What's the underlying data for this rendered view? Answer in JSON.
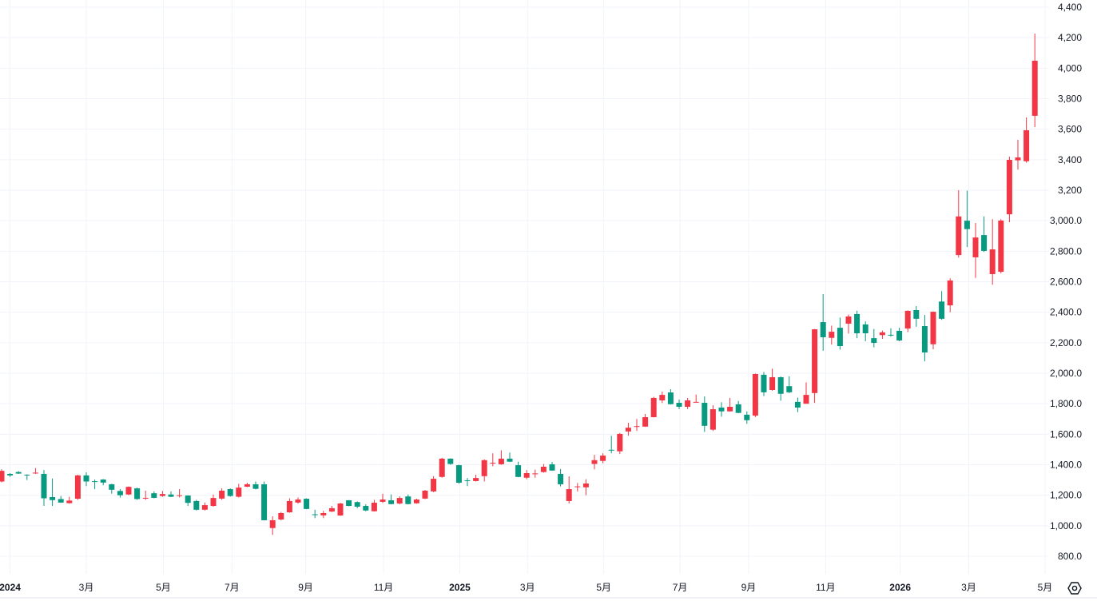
{
  "colors": {
    "up": "#f23645",
    "down": "#089981",
    "grid": "#f0f3fa",
    "text": "#131722"
  },
  "settings_icon": "gear-icon",
  "chart_data": {
    "type": "candlestick",
    "interval": "weekly",
    "ylim": [
      800,
      4400
    ],
    "y_ticks": [
      {
        "value": 4400,
        "label": "4,400"
      },
      {
        "value": 4200,
        "label": "4,200"
      },
      {
        "value": 4000,
        "label": "4,000"
      },
      {
        "value": 3800,
        "label": "3,800"
      },
      {
        "value": 3600,
        "label": "3,600"
      },
      {
        "value": 3400,
        "label": "3,400"
      },
      {
        "value": 3200,
        "label": "3,200"
      },
      {
        "value": 3000,
        "label": "3,000.0"
      },
      {
        "value": 2800,
        "label": "2,800.0"
      },
      {
        "value": 2600,
        "label": "2,600.0"
      },
      {
        "value": 2400,
        "label": "2,400.0"
      },
      {
        "value": 2200,
        "label": "2,200.0"
      },
      {
        "value": 2000,
        "label": "2,000.0"
      },
      {
        "value": 1800,
        "label": "1,800.0"
      },
      {
        "value": 1600,
        "label": "1,600.0"
      },
      {
        "value": 1400,
        "label": "1,400.0"
      },
      {
        "value": 1200,
        "label": "1,200.0"
      },
      {
        "value": 1000,
        "label": "1,000.0"
      },
      {
        "value": 800,
        "label": "800.0"
      }
    ],
    "x_ticks": [
      {
        "week": 1.0,
        "label": "2024",
        "year": true
      },
      {
        "week": 10.0,
        "label": "3月"
      },
      {
        "week": 19.1,
        "label": "5月"
      },
      {
        "week": 27.2,
        "label": "7月"
      },
      {
        "week": 35.9,
        "label": "9月"
      },
      {
        "week": 45.1,
        "label": "11月"
      },
      {
        "week": 54.1,
        "label": "2025",
        "year": true
      },
      {
        "week": 62.1,
        "label": "3月"
      },
      {
        "week": 71.1,
        "label": "5月"
      },
      {
        "week": 80.1,
        "label": "7月"
      },
      {
        "week": 88.2,
        "label": "9月"
      },
      {
        "week": 97.3,
        "label": "11月"
      },
      {
        "week": 106.1,
        "label": "2026",
        "year": true
      },
      {
        "week": 114.2,
        "label": "3月"
      },
      {
        "week": 123.2,
        "label": "5月"
      }
    ],
    "candles_ohlc": [
      [
        1290,
        1370,
        1285,
        1360
      ],
      [
        1340,
        1345,
        1320,
        1330
      ],
      [
        1352,
        1358,
        1340,
        1342
      ],
      [
        1335,
        1337,
        1300,
        1333
      ],
      [
        1345,
        1378,
        1340,
        1348
      ],
      [
        1340,
        1365,
        1130,
        1180
      ],
      [
        1188,
        1310,
        1130,
        1168
      ],
      [
        1175,
        1195,
        1150,
        1152
      ],
      [
        1148,
        1190,
        1145,
        1165
      ],
      [
        1177,
        1335,
        1170,
        1330
      ],
      [
        1330,
        1350,
        1260,
        1290
      ],
      [
        1292,
        1303,
        1240,
        1290
      ],
      [
        1303,
        1306,
        1265,
        1283
      ],
      [
        1272,
        1275,
        1210,
        1236
      ],
      [
        1228,
        1240,
        1185,
        1200
      ],
      [
        1205,
        1258,
        1200,
        1255
      ],
      [
        1245,
        1250,
        1170,
        1175
      ],
      [
        1180,
        1230,
        1170,
        1183
      ],
      [
        1213,
        1225,
        1180,
        1183
      ],
      [
        1195,
        1228,
        1190,
        1208
      ],
      [
        1205,
        1225,
        1188,
        1190
      ],
      [
        1198,
        1240,
        1185,
        1200
      ],
      [
        1198,
        1200,
        1130,
        1150
      ],
      [
        1162,
        1170,
        1100,
        1105
      ],
      [
        1105,
        1152,
        1100,
        1135
      ],
      [
        1130,
        1205,
        1125,
        1182
      ],
      [
        1178,
        1245,
        1170,
        1230
      ],
      [
        1240,
        1245,
        1190,
        1195
      ],
      [
        1190,
        1275,
        1185,
        1250
      ],
      [
        1256,
        1282,
        1253,
        1272
      ],
      [
        1272,
        1290,
        1238,
        1242
      ],
      [
        1272,
        1290,
        1035,
        1036
      ],
      [
        985,
        1062,
        940,
        1036
      ],
      [
        1041,
        1090,
        1035,
        1083
      ],
      [
        1088,
        1180,
        1085,
        1162
      ],
      [
        1152,
        1185,
        1145,
        1172
      ],
      [
        1177,
        1180,
        1108,
        1110
      ],
      [
        1075,
        1105,
        1050,
        1073
      ],
      [
        1068,
        1098,
        1050,
        1083
      ],
      [
        1093,
        1130,
        1090,
        1115
      ],
      [
        1067,
        1150,
        1065,
        1146
      ],
      [
        1167,
        1168,
        1128,
        1130
      ],
      [
        1155,
        1160,
        1115,
        1125
      ],
      [
        1130,
        1140,
        1095,
        1100
      ],
      [
        1095,
        1170,
        1093,
        1151
      ],
      [
        1157,
        1210,
        1150,
        1172
      ],
      [
        1167,
        1205,
        1140,
        1142
      ],
      [
        1146,
        1193,
        1140,
        1182
      ],
      [
        1192,
        1205,
        1140,
        1142
      ],
      [
        1147,
        1178,
        1145,
        1172
      ],
      [
        1178,
        1235,
        1175,
        1230
      ],
      [
        1225,
        1325,
        1220,
        1308
      ],
      [
        1320,
        1445,
        1315,
        1440
      ],
      [
        1440,
        1442,
        1400,
        1405
      ],
      [
        1397,
        1400,
        1275,
        1282
      ],
      [
        1298,
        1313,
        1260,
        1295
      ],
      [
        1293,
        1335,
        1290,
        1313
      ],
      [
        1325,
        1435,
        1290,
        1430
      ],
      [
        1410,
        1475,
        1390,
        1413
      ],
      [
        1403,
        1495,
        1400,
        1440
      ],
      [
        1440,
        1480,
        1418,
        1420
      ],
      [
        1397,
        1420,
        1318,
        1320
      ],
      [
        1315,
        1365,
        1305,
        1345
      ],
      [
        1340,
        1368,
        1315,
        1343
      ],
      [
        1352,
        1405,
        1348,
        1387
      ],
      [
        1403,
        1418,
        1360,
        1362
      ],
      [
        1340,
        1372,
        1258,
        1272
      ],
      [
        1162,
        1324,
        1146,
        1240
      ],
      [
        1255,
        1280,
        1225,
        1258
      ],
      [
        1252,
        1305,
        1200,
        1277
      ],
      [
        1405,
        1465,
        1370,
        1430
      ],
      [
        1425,
        1475,
        1410,
        1460
      ],
      [
        1498,
        1590,
        1475,
        1495
      ],
      [
        1488,
        1608,
        1470,
        1602
      ],
      [
        1618,
        1675,
        1590,
        1643
      ],
      [
        1650,
        1700,
        1622,
        1653
      ],
      [
        1650,
        1733,
        1648,
        1712
      ],
      [
        1712,
        1845,
        1710,
        1838
      ],
      [
        1822,
        1880,
        1805,
        1858
      ],
      [
        1874,
        1895,
        1795,
        1797
      ],
      [
        1806,
        1828,
        1765,
        1780
      ],
      [
        1780,
        1838,
        1765,
        1822
      ],
      [
        1810,
        1860,
        1810,
        1812
      ],
      [
        1806,
        1848,
        1615,
        1655
      ],
      [
        1630,
        1790,
        1622,
        1764
      ],
      [
        1775,
        1810,
        1715,
        1750
      ],
      [
        1750,
        1838,
        1748,
        1780
      ],
      [
        1796,
        1818,
        1738,
        1740
      ],
      [
        1728,
        1750,
        1668,
        1692
      ],
      [
        1722,
        1998,
        1712,
        1995
      ],
      [
        1990,
        2008,
        1850,
        1875
      ],
      [
        1890,
        2030,
        1885,
        1974
      ],
      [
        1974,
        1978,
        1820,
        1865
      ],
      [
        1915,
        1980,
        1870,
        1875
      ],
      [
        1812,
        1840,
        1745,
        1775
      ],
      [
        1800,
        1940,
        1800,
        1858
      ],
      [
        1870,
        2290,
        1805,
        2288
      ],
      [
        2335,
        2519,
        2147,
        2236
      ],
      [
        2232,
        2312,
        2188,
        2272
      ],
      [
        2298,
        2365,
        2155,
        2178
      ],
      [
        2325,
        2385,
        2260,
        2372
      ],
      [
        2388,
        2410,
        2230,
        2262
      ],
      [
        2320,
        2340,
        2210,
        2262
      ],
      [
        2230,
        2290,
        2170,
        2199
      ],
      [
        2250,
        2280,
        2225,
        2268
      ],
      [
        2252,
        2295,
        2240,
        2248
      ],
      [
        2278,
        2298,
        2210,
        2215
      ],
      [
        2293,
        2412,
        2270,
        2409
      ],
      [
        2414,
        2440,
        2305,
        2357
      ],
      [
        2309,
        2382,
        2078,
        2136
      ],
      [
        2190,
        2405,
        2157,
        2403
      ],
      [
        2470,
        2538,
        2350,
        2357
      ],
      [
        2445,
        2622,
        2400,
        2608
      ],
      [
        2775,
        3200,
        2758,
        3028
      ],
      [
        3000,
        3197,
        2827,
        2945
      ],
      [
        2760,
        2985,
        2625,
        2890
      ],
      [
        2906,
        3028,
        2795,
        2802
      ],
      [
        2650,
        3010,
        2580,
        2812
      ],
      [
        2665,
        3010,
        2655,
        3001
      ],
      [
        3042,
        3420,
        2990,
        3399
      ],
      [
        3396,
        3530,
        3335,
        3415
      ],
      [
        3390,
        3677,
        3380,
        3593
      ],
      [
        3688,
        4227,
        3614,
        4049
      ]
    ]
  }
}
